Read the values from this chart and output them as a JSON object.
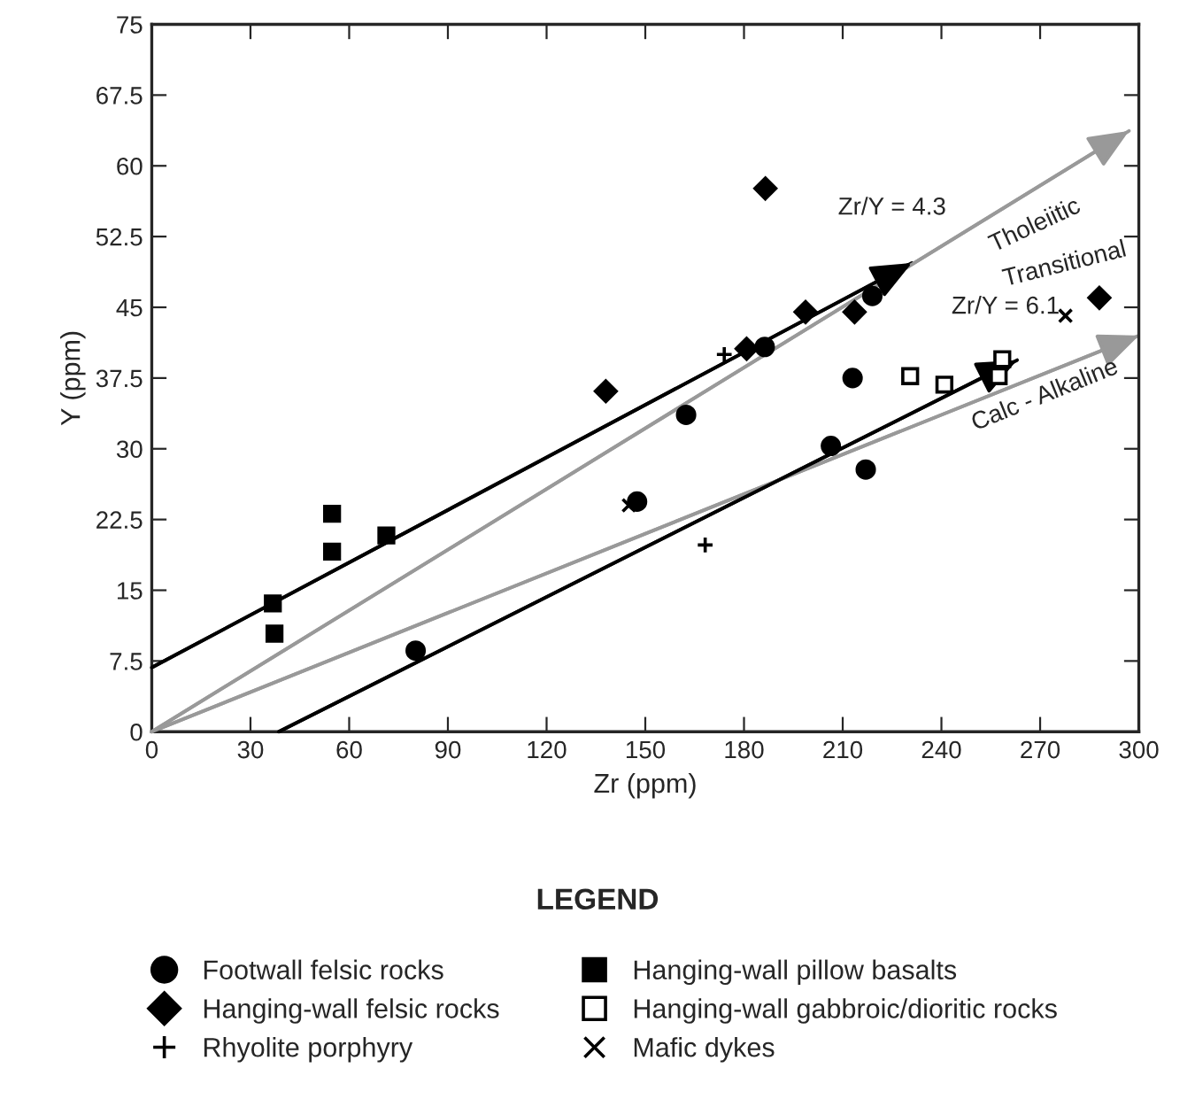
{
  "chart_data": {
    "type": "scatter",
    "xlabel": "Zr (ppm)",
    "ylabel": "Y (ppm)",
    "legend_title": "LEGEND",
    "legend": "bottom",
    "grid": false,
    "xlim": [
      0,
      300
    ],
    "xticks": [
      0,
      30,
      60,
      90,
      120,
      150,
      180,
      210,
      240,
      270,
      300
    ],
    "ylim": [
      0,
      75
    ],
    "yticks": [
      0,
      7.5,
      15,
      22.5,
      30,
      37.5,
      45,
      52.5,
      60,
      67.5,
      75
    ],
    "series": [
      {
        "type": "line",
        "color": "#999999",
        "x": [
          0,
          297
        ],
        "values": [
          0,
          63.7
        ]
      },
      {
        "type": "line",
        "color": "#999999",
        "x": [
          0,
          300
        ],
        "values": [
          0,
          42
        ]
      },
      {
        "type": "line",
        "color": "#000000",
        "x": [
          0,
          231
        ],
        "values": [
          6.8,
          49.7
        ]
      },
      {
        "type": "line",
        "color": "#000000",
        "x": [
          38.6,
          263
        ],
        "values": [
          0,
          39.4
        ]
      },
      {
        "name": "Footwall felsic rocks",
        "color": "#000000",
        "marker": "circle",
        "x": [
          80.2,
          147.5,
          162.4,
          186.3,
          206.4,
          213,
          219,
          217
        ],
        "values": [
          8.6,
          24.4,
          33.6,
          40.8,
          30.3,
          37.5,
          46.2,
          27.8
        ]
      },
      {
        "name": "Hanging-wall felsic rocks",
        "color": "#000000",
        "marker": "diamond",
        "x": [
          138,
          186.5,
          180.8,
          198.7,
          213.6,
          288
        ],
        "values": [
          36.1,
          57.6,
          40.6,
          44.5,
          44.5,
          46
        ]
      },
      {
        "name": "Rhyolite porphyry",
        "color": "#000000",
        "marker": "plus",
        "x": [
          174,
          168.2
        ],
        "values": [
          40,
          19.8
        ]
      },
      {
        "name": "Hanging-wall pillow basalts",
        "color": "#000000",
        "marker": "square",
        "x": [
          36.8,
          37.3,
          54.8,
          54.8,
          71.3
        ],
        "values": [
          13.6,
          10.4,
          23.1,
          19.1,
          20.8
        ]
      },
      {
        "name": "Hanging-wall gabbroic/dioritic rocks",
        "color": "#ffffff",
        "marker": "square",
        "x": [
          230.5,
          240.9,
          257.4,
          258.5
        ],
        "values": [
          37.7,
          36.8,
          37.7,
          39.5
        ]
      },
      {
        "name": "Mafic dykes",
        "color": "#000000",
        "marker": "cross",
        "x": [
          145,
          277.7
        ],
        "values": [
          24,
          44.1
        ]
      }
    ],
    "annotations": [
      "Zr/Y = 4.3",
      "Zr/Y = 6.1",
      "Tholeiitic",
      "Transitional",
      "Calc - Alkaline"
    ]
  }
}
